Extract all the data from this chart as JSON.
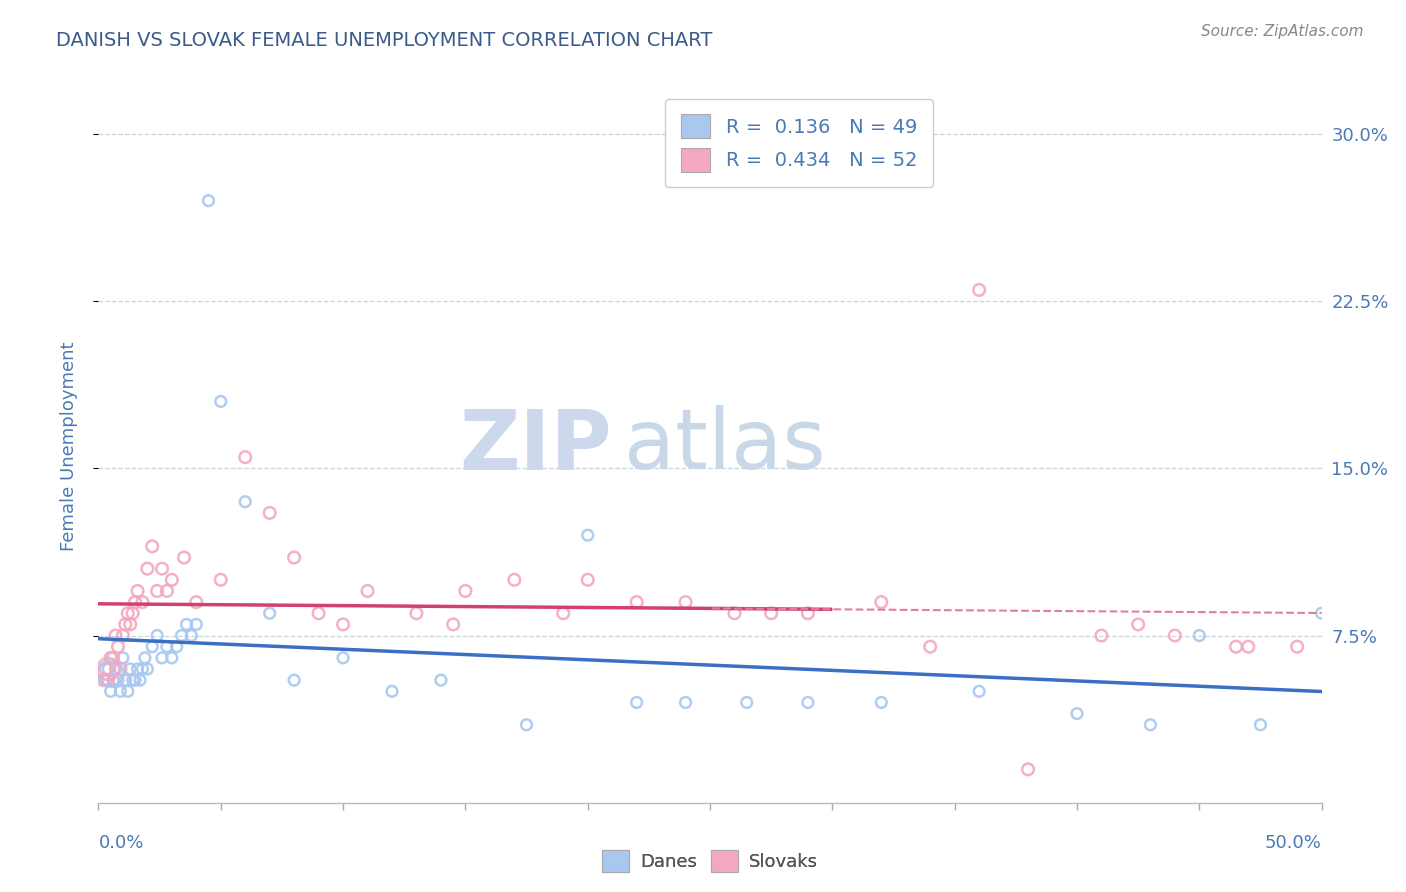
{
  "title": "DANISH VS SLOVAK FEMALE UNEMPLOYMENT CORRELATION CHART",
  "source": "Source: ZipAtlas.com",
  "ylabel": "Female Unemployment",
  "R_danes": 0.136,
  "N_danes": 49,
  "R_slovaks": 0.434,
  "N_slovaks": 52,
  "blue_scatter_color": "#a8c8f0",
  "pink_scatter_color": "#f4a8c0",
  "blue_line_color": "#3a6fc4",
  "pink_line_color": "#d04070",
  "pink_dash_color": "#e08090",
  "title_color": "#3a5a8a",
  "axis_color": "#4a7ab5",
  "watermark_color": "#dce8f5",
  "source_color": "#888888",
  "grid_color": "#c8d4e0",
  "xmin": 0,
  "xmax": 50,
  "ymin": 0,
  "ymax": 32,
  "right_ytick_vals": [
    7.5,
    15.0,
    22.5,
    30.0
  ],
  "right_ytick_labels": [
    "7.5%",
    "15.0%",
    "22.5%",
    "30.0%"
  ],
  "danes_x": [
    0.3,
    0.4,
    0.5,
    0.6,
    0.7,
    0.8,
    0.9,
    1.0,
    1.1,
    1.2,
    1.3,
    1.4,
    1.5,
    1.6,
    1.7,
    1.8,
    1.9,
    2.0,
    2.2,
    2.4,
    2.6,
    2.8,
    3.0,
    3.2,
    3.4,
    3.6,
    3.8,
    4.0,
    4.5,
    5.0,
    6.0,
    7.0,
    8.0,
    10.0,
    12.0,
    14.0,
    17.5,
    20.0,
    22.0,
    24.0,
    26.5,
    29.0,
    32.0,
    36.0,
    40.0,
    43.0,
    45.0,
    47.5,
    50.0
  ],
  "danes_y": [
    5.5,
    6.0,
    5.0,
    5.5,
    6.0,
    5.5,
    5.0,
    6.5,
    5.5,
    5.0,
    6.0,
    5.5,
    5.5,
    6.0,
    5.5,
    6.0,
    6.5,
    6.0,
    7.0,
    7.5,
    6.5,
    7.0,
    6.5,
    7.0,
    7.5,
    8.0,
    7.5,
    8.0,
    27.0,
    18.0,
    13.5,
    8.5,
    5.5,
    6.5,
    5.0,
    5.5,
    3.5,
    12.0,
    4.5,
    4.5,
    4.5,
    4.5,
    4.5,
    5.0,
    4.0,
    3.5,
    7.5,
    3.5,
    8.5
  ],
  "slovaks_x": [
    0.2,
    0.3,
    0.4,
    0.5,
    0.6,
    0.7,
    0.8,
    0.9,
    1.0,
    1.1,
    1.2,
    1.3,
    1.4,
    1.5,
    1.6,
    1.8,
    2.0,
    2.2,
    2.4,
    2.6,
    2.8,
    3.0,
    3.5,
    4.0,
    5.0,
    6.0,
    7.0,
    8.0,
    9.0,
    11.0,
    13.0,
    15.0,
    17.0,
    19.0,
    22.0,
    26.0,
    29.0,
    32.0,
    36.0,
    38.0,
    41.0,
    44.0,
    47.0,
    49.0,
    14.5,
    10.0,
    20.0,
    24.0,
    27.5,
    34.0,
    42.5,
    46.5
  ],
  "slovaks_y": [
    5.5,
    6.0,
    5.5,
    6.5,
    6.5,
    7.5,
    7.0,
    6.0,
    7.5,
    8.0,
    8.5,
    8.0,
    8.5,
    9.0,
    9.5,
    9.0,
    10.5,
    11.5,
    9.5,
    10.5,
    9.5,
    10.0,
    11.0,
    9.0,
    10.0,
    15.5,
    13.0,
    11.0,
    8.5,
    9.5,
    8.5,
    9.5,
    10.0,
    8.5,
    9.0,
    8.5,
    8.5,
    9.0,
    23.0,
    1.5,
    7.5,
    7.5,
    7.0,
    7.0,
    8.0,
    8.0,
    10.0,
    9.0,
    8.5,
    7.0,
    8.0,
    7.0
  ]
}
